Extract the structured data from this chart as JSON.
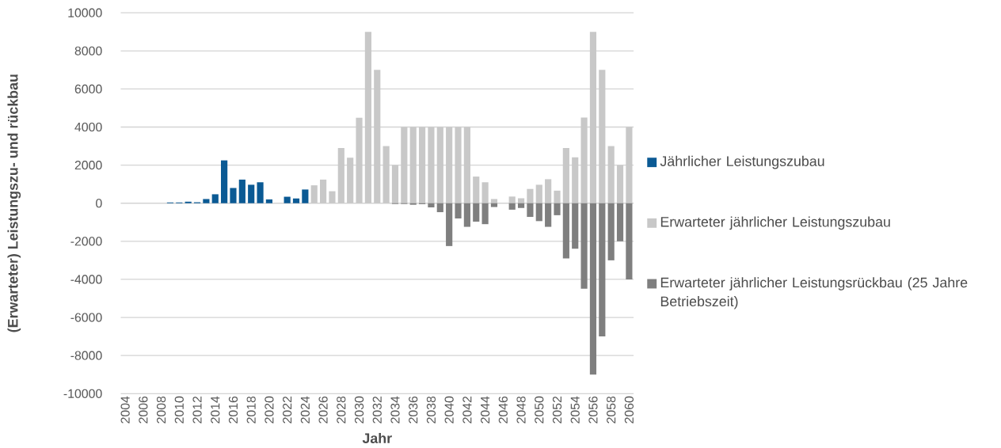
{
  "chart_data": {
    "type": "bar",
    "stacked": true,
    "xlabel": "Jahr",
    "ylabel": "(Erwarteter) Leistungszu- und rückbau",
    "categories": [
      "2004",
      null,
      "2006",
      null,
      "2008",
      null,
      "2010",
      null,
      "2012",
      null,
      "2014",
      null,
      "2016",
      null,
      "2018",
      null,
      "2020",
      null,
      "2022",
      null,
      "2024",
      null,
      "2026",
      null,
      "2028",
      null,
      "2030",
      null,
      "2032",
      null,
      "2034",
      null,
      "2036",
      null,
      "2038",
      null,
      "2040",
      null,
      "2042",
      null,
      "2044",
      null,
      "2046",
      null,
      "2048",
      null,
      "2050",
      null,
      "2052",
      null,
      "2054",
      null,
      "2056",
      null,
      "2058",
      null,
      "2060"
    ],
    "series": [
      {
        "name": "Jährlicher Leistungszubau",
        "color": "#0b5a94",
        "values": [
          0,
          0,
          0,
          0,
          0,
          40,
          40,
          80,
          50,
          220,
          470,
          2250,
          800,
          1240,
          970,
          1100,
          200,
          0,
          340,
          250,
          720,
          null,
          null,
          null,
          null,
          null,
          null,
          null,
          null,
          null,
          null,
          null,
          null,
          null,
          null,
          null,
          null,
          null,
          null,
          null,
          null,
          null,
          null,
          null,
          null,
          null,
          null,
          null,
          null,
          null,
          null,
          null,
          null,
          null,
          null,
          null,
          null
        ]
      },
      {
        "name": "Erwarteter jährlicher Leistungszubau",
        "color": "#c8c8c8",
        "values": [
          null,
          null,
          null,
          null,
          null,
          null,
          null,
          null,
          null,
          null,
          null,
          null,
          null,
          null,
          null,
          null,
          null,
          null,
          null,
          null,
          null,
          940,
          1240,
          630,
          2900,
          2390,
          4490,
          9000,
          7000,
          3000,
          2000,
          4000,
          4000,
          4000,
          4000,
          4000,
          4000,
          4000,
          4000,
          1400,
          1100,
          220,
          0,
          350,
          260,
          750,
          970,
          1260,
          660,
          2900,
          2410,
          4500,
          9000,
          7000,
          3000,
          2000,
          4000
        ]
      },
      {
        "name": "Erwarteter jährlicher Leistungsrückbau (25 Jahre Betriebszeit)",
        "color": "#7f7f7f",
        "values": [
          null,
          null,
          null,
          null,
          null,
          null,
          null,
          null,
          null,
          null,
          null,
          null,
          null,
          null,
          null,
          null,
          null,
          null,
          null,
          null,
          null,
          null,
          null,
          null,
          null,
          0,
          0,
          0,
          0,
          0,
          -40,
          -40,
          -80,
          -50,
          -220,
          -470,
          -2250,
          -800,
          -1240,
          -970,
          -1100,
          -200,
          0,
          -340,
          -250,
          -720,
          -940,
          -1240,
          -630,
          -2900,
          -2390,
          -4490,
          -9000,
          -7000,
          -3000,
          -2000,
          -4000
        ]
      }
    ],
    "ylim": [
      -10000,
      10000
    ],
    "yticks": [
      -10000,
      -8000,
      -6000,
      -4000,
      -2000,
      0,
      2000,
      4000,
      6000,
      8000,
      10000
    ],
    "grid": "y",
    "legend": "right"
  }
}
